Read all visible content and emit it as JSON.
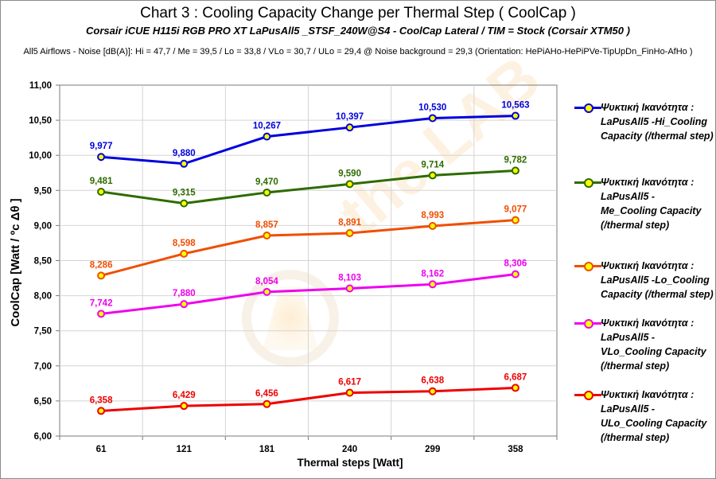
{
  "title": "Chart 3 :  Cooling Capacity Change per Thermal Step ( CoolCap )",
  "subtitle": "Corsair iCUE H115i RGB PRO XT  LaPusAll5 _STSF_240W@S4  -  CoolCap Lateral    /   TIM = Stock  (Corsair XTM50 )",
  "note": "All5 Airflows  -  Noise [dB(A)]: Hi = 47,7 / Me = 39,5 / Lo = 33,8 / VLo = 30,7 / ULo = 29,4 @ Noise background = 29,3     (Orientation: HePiAHo-HePiPVe-TipUpDn_FinHo-AfHo )",
  "chart_data": {
    "type": "line",
    "categories": [
      "61",
      "121",
      "181",
      "240",
      "299",
      "358"
    ],
    "xlabel": "Thermal steps  [Watt]",
    "ylabel": "CoolCap   [Watt / ºc Δθ ]",
    "ylim": [
      6.0,
      11.0
    ],
    "ytick_step": 0.5,
    "yticks": [
      "6,00",
      "6,50",
      "7,00",
      "7,50",
      "8,00",
      "8,50",
      "9,00",
      "9,50",
      "10,00",
      "10,50",
      "11,00"
    ],
    "grid": true,
    "legend_position": "right",
    "series": [
      {
        "name": "Ψυκτική Ικανότητα : LaPusAll5 -Hi_Cooling Capacity (/thermal step)",
        "color": "#0000dd",
        "values": [
          9.977,
          9.88,
          10.267,
          10.397,
          10.53,
          10.563
        ],
        "labels": [
          "9,977",
          "9,880",
          "10,267",
          "10,397",
          "10,530",
          "10,563"
        ]
      },
      {
        "name": "Ψυκτική Ικανότητα : LaPusAll5 - Me_Cooling Capacity (/thermal step)",
        "color": "#2e6b00",
        "values": [
          9.481,
          9.315,
          9.47,
          9.59,
          9.714,
          9.782
        ],
        "labels": [
          "9,481",
          "9,315",
          "9,470",
          "9,590",
          "9,714",
          "9,782"
        ]
      },
      {
        "name": "Ψυκτική Ικανότητα : LaPusAll5 -Lo_Cooling Capacity (/thermal step)",
        "color": "#f04e00",
        "values": [
          8.286,
          8.598,
          8.857,
          8.891,
          8.993,
          9.077
        ],
        "labels": [
          "8,286",
          "8,598",
          "8,857",
          "8,891",
          "8,993",
          "9,077"
        ]
      },
      {
        "name": "Ψυκτική Ικανότητα : LaPusAll5 - VLo_Cooling Capacity (/thermal step)",
        "color": "#ee00ee",
        "values": [
          7.742,
          7.88,
          8.054,
          8.103,
          8.162,
          8.306
        ],
        "labels": [
          "7,742",
          "7,880",
          "8,054",
          "8,103",
          "8,162",
          "8,306"
        ]
      },
      {
        "name": "Ψυκτική Ικανότητα : LaPusAll5 - ULo_Cooling Capacity (/thermal step)",
        "color": "#ee0000",
        "values": [
          6.358,
          6.429,
          6.456,
          6.617,
          6.638,
          6.687
        ],
        "labels": [
          "6,358",
          "6,429",
          "6,456",
          "6,617",
          "6,638",
          "6,687"
        ]
      }
    ]
  }
}
